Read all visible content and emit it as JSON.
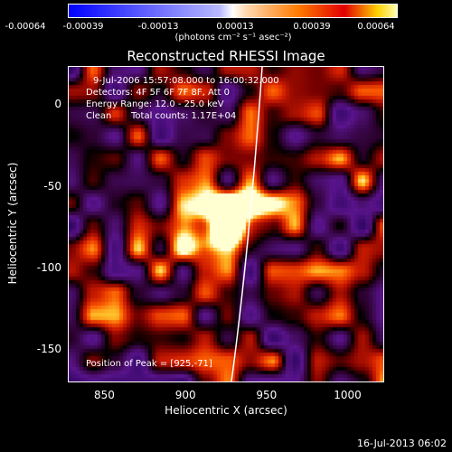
{
  "colorbar": {
    "ticks": [
      "-0.00064",
      "-0.00039",
      "-0.00013",
      "0.00013",
      "0.00039",
      "0.00064"
    ],
    "units": "(photons cm⁻² s⁻¹ asec⁻²)",
    "range": [
      -0.00064,
      0.00064
    ]
  },
  "chart_data": {
    "type": "heatmap",
    "title": "Reconstructed RHESSI Image",
    "xlabel": "Heliocentric X (arcsec)",
    "ylabel": "Heliocentric Y (arcsec)",
    "xlim": [
      828,
      1022
    ],
    "ylim": [
      -170,
      23
    ],
    "x_ticks": [
      "850",
      "900",
      "950",
      "1000"
    ],
    "y_ticks": [
      "0",
      "-50",
      "-100",
      "-150"
    ],
    "peak": [
      925,
      -71
    ],
    "limb_visible": true,
    "annotations": {
      "time": "9-Jul-2006 15:57:08.000 to 16:00:32.000",
      "detectors": "Detectors: 4F 5F 6F 7F 8F, Att 0",
      "energy": "Energy Range: 12.0 - 25.0 keV",
      "method": "Clean",
      "counts": "Total counts: 1.17E+04",
      "peak_label": "Position of Peak = [925,-71]"
    }
  },
  "footer": {
    "timestamp": "16-Jul-2013 06:02"
  }
}
